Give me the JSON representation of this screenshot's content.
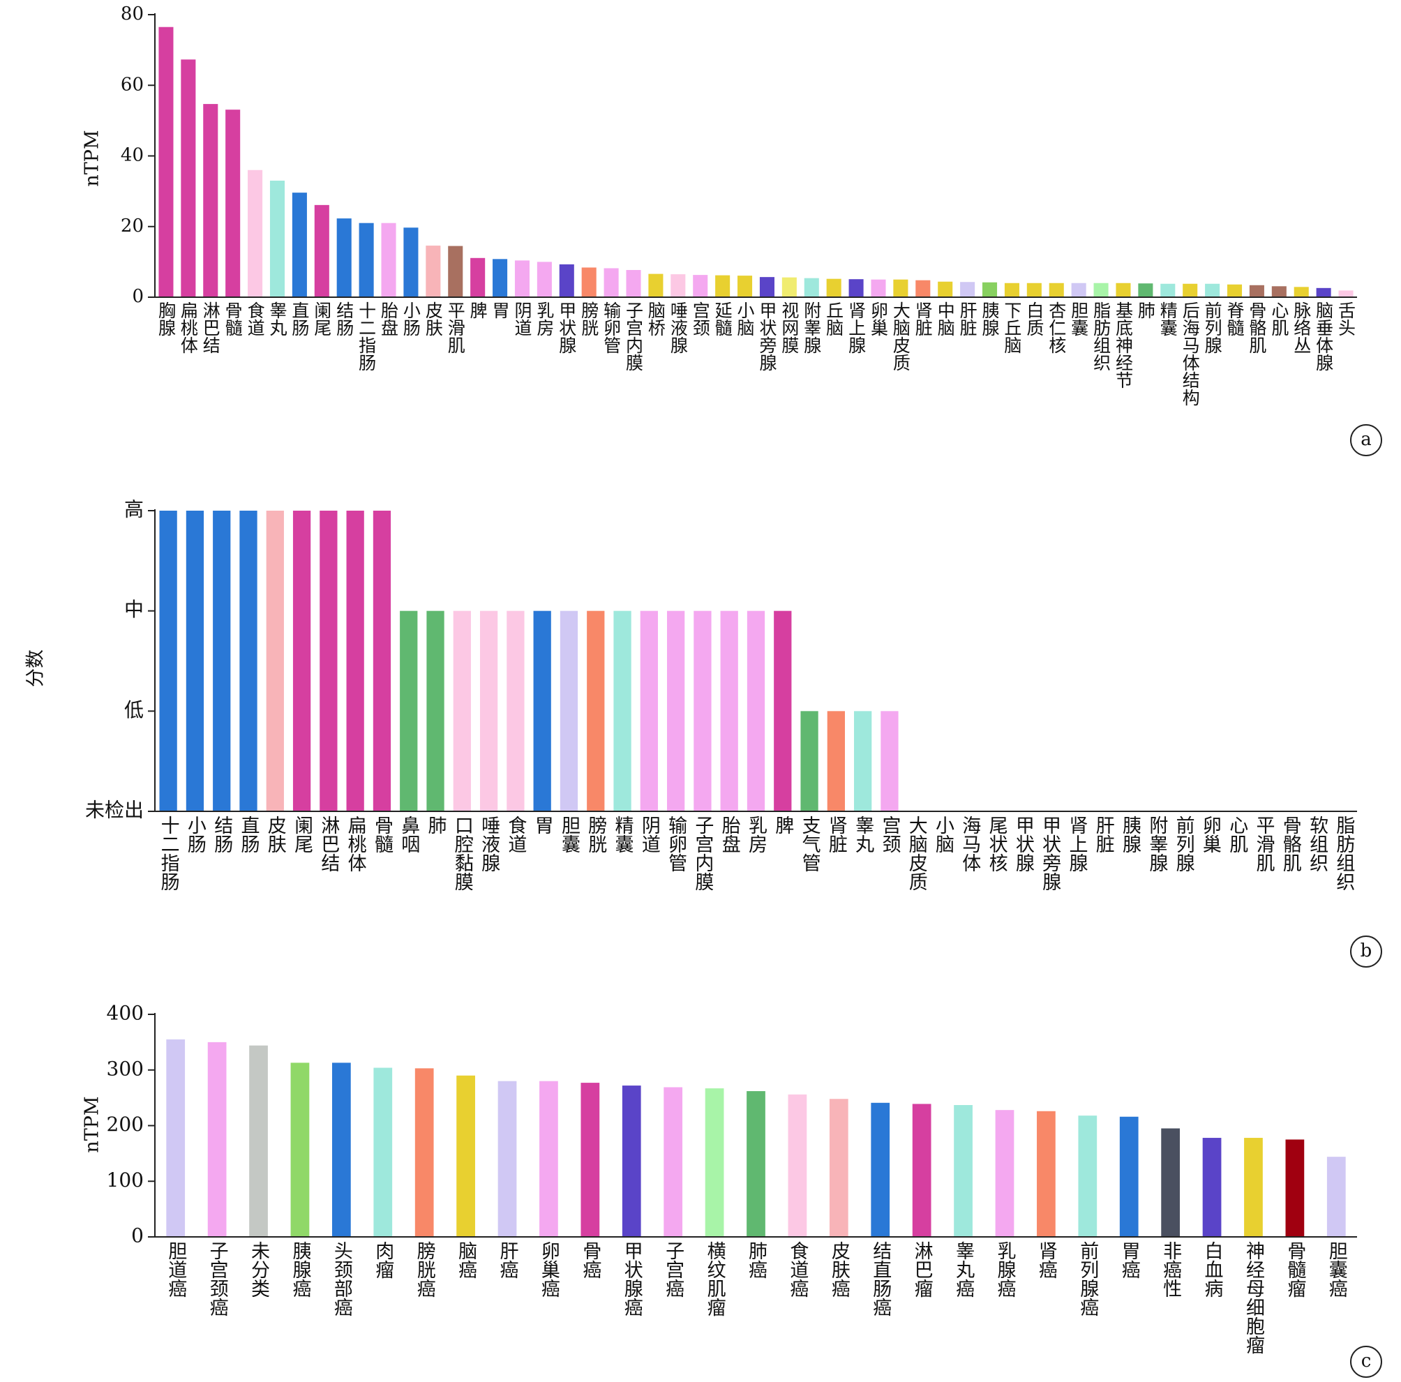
{
  "chart_data": [
    {
      "type": "bar",
      "ylabel": "nTPM",
      "panel_label": "a",
      "categories": [
        "胸腺",
        "扁桃体",
        "淋巴结",
        "骨髓",
        "食道",
        "睾丸",
        "直肠",
        "阑尾",
        "结肠",
        "十二指肠",
        "胎盘",
        "小肠",
        "皮肤",
        "平滑肌",
        "脾",
        "胃",
        "阴道",
        "乳房",
        "甲状腺",
        "膀胱",
        "输卵管",
        "子宫内膜",
        "脑桥",
        "唾液腺",
        "宫颈",
        "延髓",
        "小脑",
        "甲状旁腺",
        "视网膜",
        "附睾腺",
        "丘脑",
        "肾上腺",
        "卵巢",
        "大脑皮质",
        "肾脏",
        "中脑",
        "肝脏",
        "胰腺",
        "下丘脑",
        "白质",
        "杏仁核",
        "胆囊",
        "脂肪组织",
        "基底神经节",
        "肺",
        "精囊",
        "后海马体结构",
        "前列腺",
        "脊髓",
        "骨骼肌",
        "心肌",
        "脉络丛",
        "脑垂体腺",
        "舌头"
      ],
      "values": [
        76.5,
        67.3,
        54.7,
        53.1,
        36,
        33,
        29.6,
        26.1,
        22.3,
        21,
        21,
        19.7,
        14.6,
        14.5,
        11.1,
        10.8,
        10.4,
        10,
        9.3,
        8.4,
        8.2,
        7.7,
        6.6,
        6.5,
        6.3,
        6.2,
        6.1,
        5.7,
        5.6,
        5.4,
        5.2,
        5.1,
        5.0,
        5.0,
        4.8,
        4.4,
        4.3,
        4.2,
        4.0,
        4.0,
        4.0,
        4.0,
        4.0,
        4.0,
        3.9,
        3.8,
        3.8,
        3.8,
        3.6,
        3.4,
        3.1,
        2.9,
        2.6,
        1.9
      ],
      "colors": [
        "#d63fa0",
        "#d63fa0",
        "#d63fa0",
        "#d63fa0",
        "#fcc8e4",
        "#9ee8dc",
        "#2a78d6",
        "#d63fa0",
        "#2a78d6",
        "#2a78d6",
        "#f4a8f0",
        "#2a78d6",
        "#f8b4b8",
        "#a87060",
        "#d63fa0",
        "#2a78d6",
        "#f4a8f0",
        "#f4a8f0",
        "#5a44c8",
        "#f88868",
        "#f4a8f0",
        "#f4a8f0",
        "#e8d030",
        "#fcc8e4",
        "#f4a8f0",
        "#e8d030",
        "#e8d030",
        "#5a44c8",
        "#f0ec70",
        "#9ee8dc",
        "#e8d030",
        "#5a44c8",
        "#f4a8f0",
        "#e8d030",
        "#f88868",
        "#e8d030",
        "#d0c8f4",
        "#88d060",
        "#e8d030",
        "#e8d030",
        "#e8d030",
        "#d0c8f4",
        "#a8f4a8",
        "#e8d030",
        "#60b870",
        "#9ee8dc",
        "#e8d030",
        "#9ee8dc",
        "#e8d030",
        "#a87060",
        "#a87060",
        "#e8d030",
        "#5a44c8",
        "#fcc8e4"
      ],
      "ylim": [
        0,
        80
      ],
      "yticks": [
        0,
        20,
        40,
        60,
        80
      ]
    },
    {
      "type": "bar",
      "ylabel": "分数",
      "panel_label": "b",
      "categories": [
        "十二指肠",
        "小肠",
        "结肠",
        "直肠",
        "皮肤",
        "阑尾",
        "淋巴结",
        "扁桃体",
        "骨髓",
        "鼻咽",
        "肺",
        "口腔黏膜",
        "唾液腺",
        "食道",
        "胃",
        "胆囊",
        "膀胱",
        "精囊",
        "阴道",
        "输卵管",
        "子宫内膜",
        "胎盘",
        "乳房",
        "脾",
        "支气管",
        "肾脏",
        "睾丸",
        "宫颈",
        "大脑皮质",
        "小脑",
        "海马体",
        "尾状核",
        "甲状腺",
        "甲状旁腺",
        "肾上腺",
        "肝脏",
        "胰腺",
        "附睾腺",
        "前列腺",
        "卵巢",
        "心肌",
        "平滑肌",
        "骨骼肌",
        "软组织",
        "脂肪组织"
      ],
      "values": [
        3,
        3,
        3,
        3,
        3,
        3,
        3,
        3,
        3,
        2,
        2,
        2,
        2,
        2,
        2,
        2,
        2,
        2,
        2,
        2,
        2,
        2,
        2,
        2,
        1,
        1,
        1,
        1,
        0,
        0,
        0,
        0,
        0,
        0,
        0,
        0,
        0,
        0,
        0,
        0,
        0,
        0,
        0,
        0,
        0
      ],
      "colors": [
        "#2a78d6",
        "#2a78d6",
        "#2a78d6",
        "#2a78d6",
        "#f8b4b8",
        "#d63fa0",
        "#d63fa0",
        "#d63fa0",
        "#d63fa0",
        "#60b870",
        "#60b870",
        "#fcc8e4",
        "#fcc8e4",
        "#fcc8e4",
        "#2a78d6",
        "#d0c8f4",
        "#f88868",
        "#9ee8dc",
        "#f4a8f0",
        "#f4a8f0",
        "#f4a8f0",
        "#f4a8f0",
        "#f4a8f0",
        "#d63fa0",
        "#60b870",
        "#f88868",
        "#9ee8dc",
        "#f4a8f0",
        "#999999",
        "#999999",
        "#999999",
        "#999999",
        "#999999",
        "#999999",
        "#999999",
        "#999999",
        "#999999",
        "#999999",
        "#999999",
        "#999999",
        "#999999",
        "#999999",
        "#999999",
        "#999999",
        "#999999"
      ],
      "ylim": [
        0,
        3
      ],
      "yticks": [
        {
          "value": 0,
          "label": "未检出"
        },
        {
          "value": 1,
          "label": "低"
        },
        {
          "value": 2,
          "label": "中"
        },
        {
          "value": 3,
          "label": "高"
        }
      ]
    },
    {
      "type": "bar",
      "ylabel": "nTPM",
      "panel_label": "c",
      "categories": [
        "胆道癌",
        "子宫颈癌",
        "未分类",
        "胰腺癌",
        "头颈部癌",
        "肉瘤",
        "膀胱癌",
        "脑癌",
        "肝癌",
        "卵巢癌",
        "骨癌",
        "甲状腺癌",
        "子宫癌",
        "横纹肌瘤",
        "肺癌",
        "食道癌",
        "皮肤癌",
        "结直肠癌",
        "淋巴瘤",
        "睾丸癌",
        "乳腺癌",
        "肾癌",
        "前列腺癌",
        "胃癌",
        "非癌性",
        "白血病",
        "神经母细胞瘤",
        "骨髓瘤",
        "胆囊癌"
      ],
      "values": [
        355,
        350,
        344,
        313,
        313,
        304,
        303,
        290,
        280,
        280,
        277,
        272,
        269,
        267,
        262,
        256,
        248,
        241,
        239,
        237,
        228,
        226,
        218,
        216,
        195,
        178,
        178,
        175,
        144
      ],
      "colors": [
        "#d0c8f4",
        "#f4a8f0",
        "#c4c8c4",
        "#90d868",
        "#2a78d6",
        "#9ee8dc",
        "#f88868",
        "#e8d030",
        "#d0c8f4",
        "#f4a8f0",
        "#d63fa0",
        "#5a44c8",
        "#f4a8f0",
        "#a8f4a8",
        "#60b870",
        "#fcc8e4",
        "#f8b4b8",
        "#2a78d6",
        "#d63fa0",
        "#9ee8dc",
        "#f4a8f0",
        "#f88868",
        "#9ee8dc",
        "#2a78d6",
        "#4a5060",
        "#5a44c8",
        "#e8d030",
        "#a00010",
        "#d0c8f4"
      ],
      "ylim": [
        0,
        400
      ],
      "yticks": [
        0,
        100,
        200,
        300,
        400
      ]
    }
  ]
}
